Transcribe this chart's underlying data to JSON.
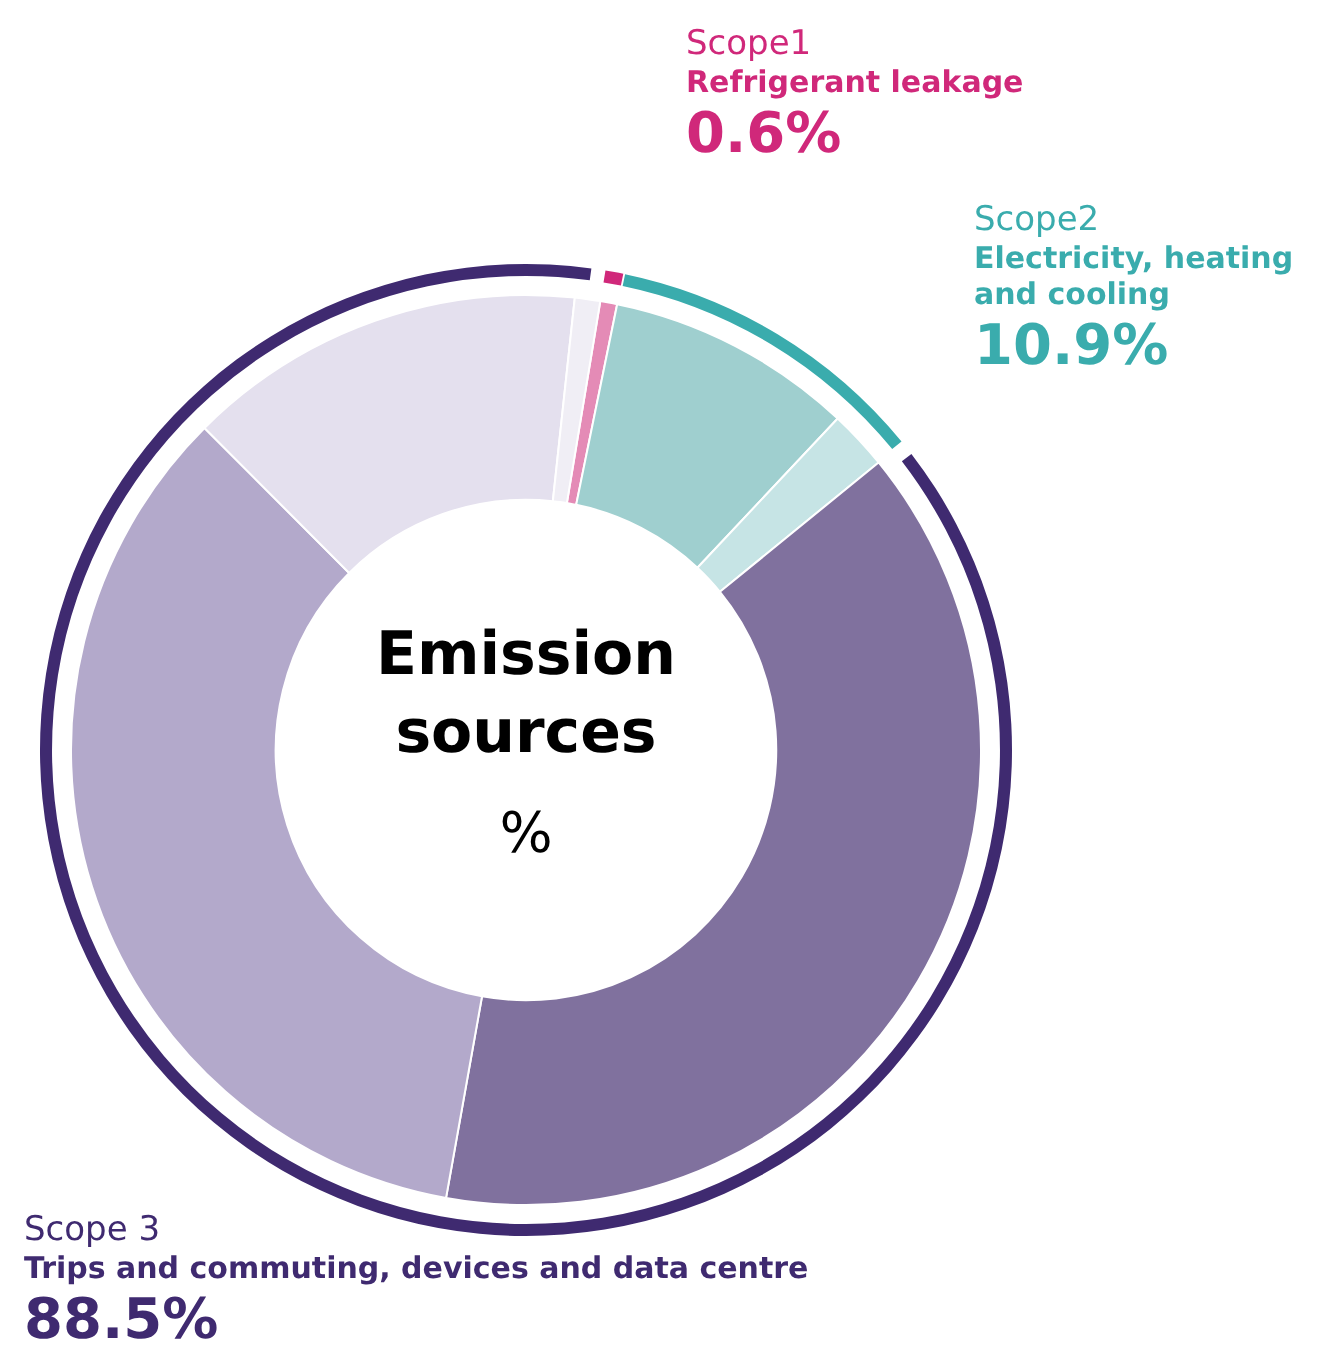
{
  "chart_data": [
    {
      "type": "donut",
      "categories": [
        "Scope1\nRefrigerant leakage",
        "Scope2\nElectricity, heating and cooling",
        "Scope 3\nTrips and commuting, devices and data centre"
      ],
      "values": [
        0.6,
        10.9,
        88.5
      ],
      "colors": [
        "#d0287a",
        "#3aacad",
        "#3f2a70"
      ],
      "value_labels": [
        "0.6%",
        "10.9%",
        "88.5%"
      ],
      "legend": false
    },
    {
      "type": "donut",
      "title": "Emission sources",
      "subtitle": "%",
      "categories": [
        null,
        null,
        null,
        null,
        null,
        null,
        null
      ],
      "values": [
        0.6,
        8.8,
        2.1,
        38.7,
        34.7,
        14.2,
        0.9
      ],
      "colors": [
        "#e48bb6",
        "#9fcfcf",
        "#c6e4e5",
        "#80719e",
        "#b3a9cb",
        "#e4e0ee",
        "#f0eef5"
      ],
      "legend": false
    }
  ]
}
